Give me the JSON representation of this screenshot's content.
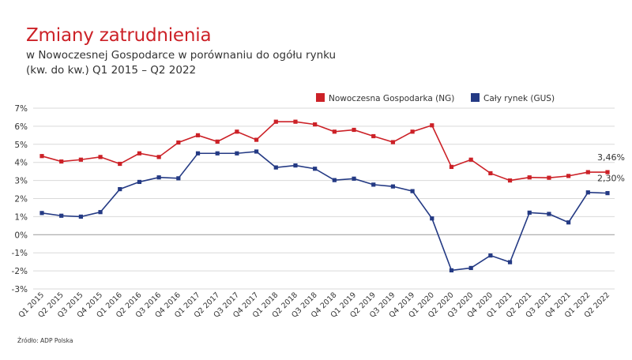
{
  "chart_data": {
    "type": "line",
    "title": "Zmiany zatrudnienia",
    "subtitle_line1": "w Nowoczesnej Gospodarce w porównaniu do ogółu rynku",
    "subtitle_line2": "(kw. do kw.) Q1 2015 – Q2 2022",
    "source": "Źródło: ADP Polska",
    "ylim": [
      -3,
      7
    ],
    "y_ticks": [
      "-3%",
      "-2%",
      "-1%",
      "0%",
      "1%",
      "2%",
      "3%",
      "4%",
      "5%",
      "6%",
      "7%"
    ],
    "grid": true,
    "legend_position": "top-right",
    "categories": [
      "Q1 2015",
      "Q2 2015",
      "Q3 2015",
      "Q4 2015",
      "Q1 2016",
      "Q2 2016",
      "Q3 2016",
      "Q4 2016",
      "Q1 2017",
      "Q2 2017",
      "Q3 2017",
      "Q4 2017",
      "Q1 2018",
      "Q2 2018",
      "Q3 2018",
      "Q4 2018",
      "Q1 2019",
      "Q2 2019",
      "Q3 2019",
      "Q4 2019",
      "Q1 2020",
      "Q2 2020",
      "Q3 2020",
      "Q4 2020",
      "Q1 2021",
      "Q2 2021",
      "Q3 2021",
      "Q4 2021",
      "Q1 2022",
      "Q2 2022"
    ],
    "series": [
      {
        "name": "Nowoczesna Gospodarka (NG)",
        "color": "#cc2127",
        "values": [
          4.35,
          4.05,
          4.15,
          4.3,
          3.92,
          4.5,
          4.3,
          5.1,
          5.5,
          5.15,
          5.7,
          5.25,
          6.25,
          6.25,
          6.1,
          5.7,
          5.8,
          5.45,
          5.12,
          5.7,
          6.05,
          3.75,
          4.15,
          3.4,
          3.0,
          3.17,
          3.15,
          3.25,
          3.46,
          3.46
        ],
        "end_label": "3,46%"
      },
      {
        "name": "Cały rynek (GUS)",
        "color": "#243a84",
        "values": [
          1.2,
          1.05,
          1.0,
          1.25,
          2.52,
          2.92,
          3.17,
          3.12,
          4.5,
          4.5,
          4.5,
          4.6,
          3.72,
          3.83,
          3.65,
          3.02,
          3.1,
          2.77,
          2.67,
          2.41,
          0.9,
          -1.97,
          -1.84,
          -1.15,
          -1.52,
          1.22,
          1.15,
          0.68,
          2.34,
          2.3
        ],
        "end_label": "2,30%"
      }
    ]
  }
}
